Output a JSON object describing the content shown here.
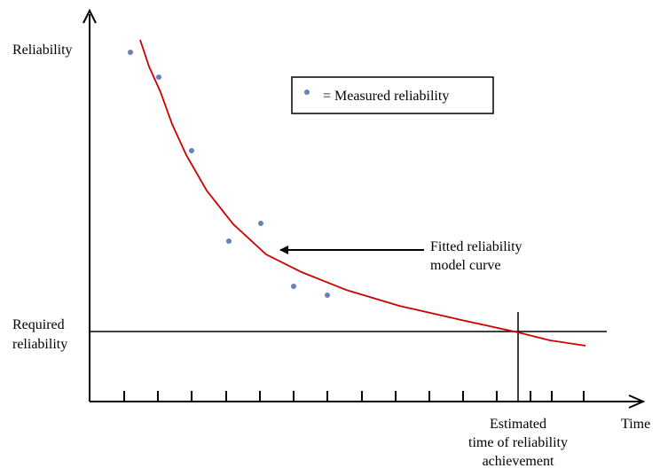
{
  "y_axis_label": "Reliability",
  "x_axis_label": "Time",
  "legend": {
    "label": "= Measured reliability"
  },
  "annotations": {
    "fitted_curve": [
      "Fitted reliability",
      "model curve"
    ],
    "required": [
      "Required",
      "reliability"
    ],
    "estimated": [
      "Estimated",
      "time of reliability",
      "achievement"
    ]
  }
}
